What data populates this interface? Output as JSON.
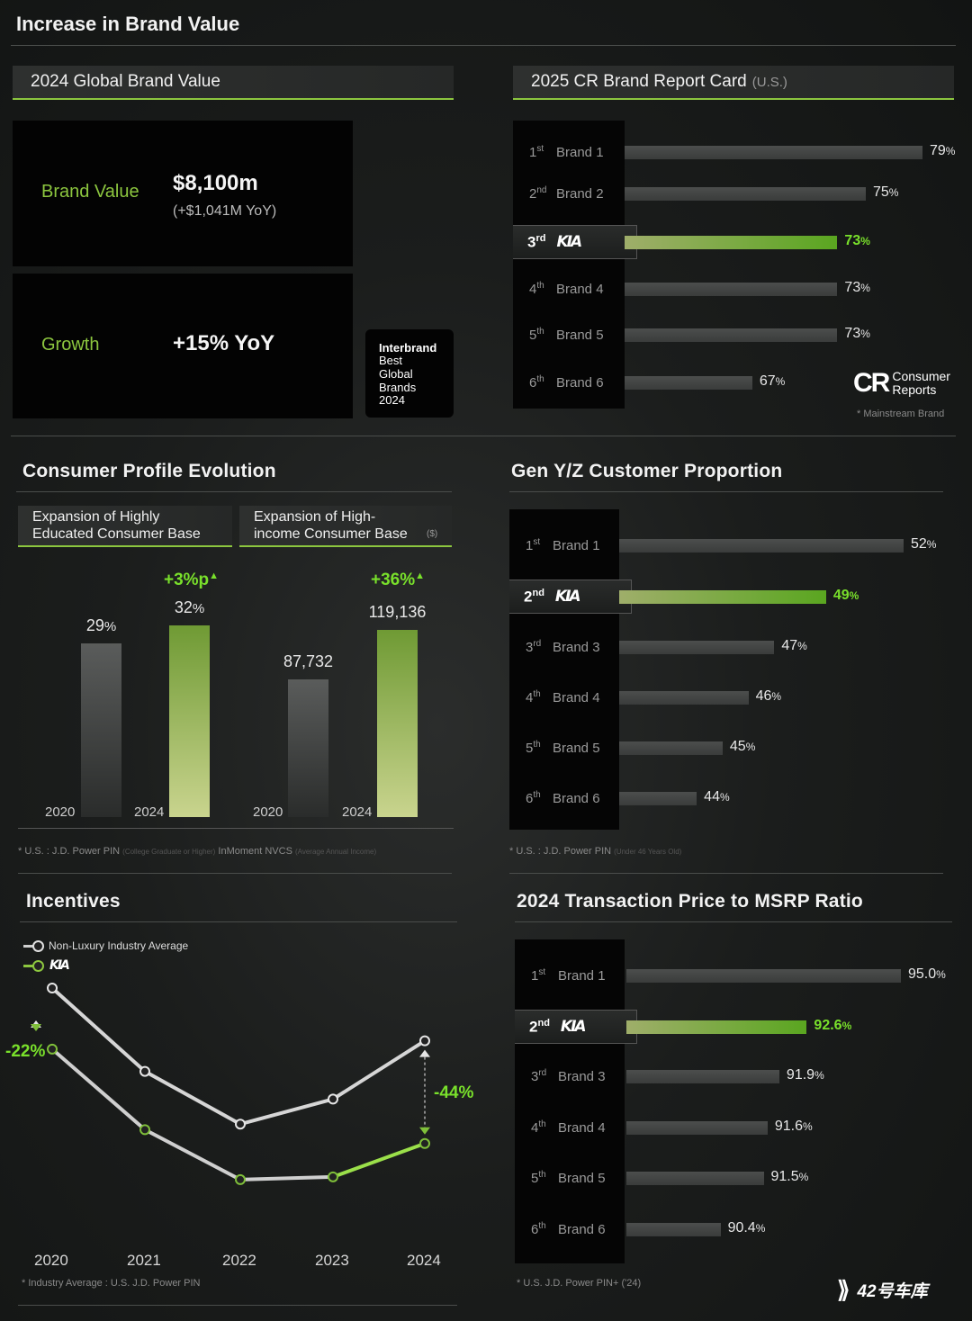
{
  "page_title": "Increase in Brand Value",
  "brand_value": {
    "tab_label": "2024 Global Brand Value",
    "value_label": "Brand Value",
    "value": "$8,100m",
    "value_change": "(+$1,041M YoY)",
    "growth_label": "Growth",
    "growth_value": "+15% YoY",
    "interbrand_badge": [
      "Interbrand",
      "Best",
      "Global",
      "Brands",
      "2024"
    ]
  },
  "cr_report": {
    "tab_label": "2025 CR Brand Report Card",
    "tab_sub": "(U.S.)",
    "footnote": "* Mainstream Brand",
    "logo_text": [
      "CR",
      "Consumer",
      "Reports"
    ]
  },
  "consumer_profile": {
    "title": "Consumer Profile Evolution",
    "tab1": "Expansion of Highly Educated Consumer Base",
    "tab2": "Expansion of High-income Consumer Base",
    "tab2_unit": "($)",
    "footnote_a": "* U.S. : J.D. Power PIN",
    "footnote_a_note": "(College Graduate or Higher)",
    "footnote_b": "InMoment NVCS",
    "footnote_b_note": "(Average Annual Income)"
  },
  "genyz": {
    "title": "Gen Y/Z Customer Proportion",
    "footnote": "* U.S. : J.D. Power PIN",
    "footnote_note": "(Under 46 Years Old)"
  },
  "incentives": {
    "title": "Incentives",
    "legend_industry": "Non-Luxury Industry Average",
    "legend_kia": "KIA",
    "left_change": "-22%",
    "right_change": "-44%",
    "footnote": "* Industry Average : U.S. J.D. Power PIN"
  },
  "transaction": {
    "title": "2024 Transaction Price to MSRP Ratio",
    "footnote": "* U.S. J.D. Power PIN+ ('24)"
  },
  "watermark": "42号车库",
  "colors": {
    "accent": "#8cc63f",
    "highlight": "#79e02b",
    "bar": "#464847"
  },
  "chart_data": [
    {
      "type": "bar",
      "title": "2025 CR Brand Report Card",
      "categories": [
        "Brand 1",
        "Brand 2",
        "KIA",
        "Brand 4",
        "Brand 5",
        "Brand 6"
      ],
      "ranks": [
        "1st",
        "2nd",
        "3rd",
        "4th",
        "5th",
        "6th"
      ],
      "values": [
        79,
        75,
        73,
        73,
        73,
        67
      ],
      "labels": [
        "79%",
        "75%",
        "73%",
        "73%",
        "73%",
        "67%"
      ],
      "highlight_index": 2,
      "orientation": "horizontal"
    },
    {
      "type": "bar",
      "title": "Expansion of Highly Educated Consumer Base",
      "categories": [
        "2020",
        "2024"
      ],
      "values": [
        29,
        32
      ],
      "labels": [
        "29%",
        "32%"
      ],
      "change": "+3%p"
    },
    {
      "type": "bar",
      "title": "Expansion of High-income Consumer Base",
      "categories": [
        "2020",
        "2024"
      ],
      "values": [
        87732,
        119136
      ],
      "labels": [
        "87,732",
        "119,136"
      ],
      "change": "+36%"
    },
    {
      "type": "bar",
      "title": "Gen Y/Z Customer Proportion",
      "categories": [
        "Brand 1",
        "KIA",
        "Brand 3",
        "Brand 4",
        "Brand 5",
        "Brand 6"
      ],
      "ranks": [
        "1st",
        "2nd",
        "3rd",
        "4th",
        "5th",
        "6th"
      ],
      "values": [
        52,
        49,
        47,
        46,
        45,
        44
      ],
      "labels": [
        "52%",
        "49%",
        "47%",
        "46%",
        "45%",
        "44%"
      ],
      "highlight_index": 1,
      "orientation": "horizontal"
    },
    {
      "type": "line",
      "title": "Incentives",
      "x": [
        "2020",
        "2021",
        "2022",
        "2023",
        "2024"
      ],
      "series": [
        {
          "name": "Non-Luxury Industry Average",
          "values": [
            100,
            70,
            51,
            60,
            81
          ]
        },
        {
          "name": "KIA",
          "values": [
            78,
            49,
            31,
            32,
            44
          ]
        }
      ],
      "annotations": [
        "-22%",
        "-44%"
      ]
    },
    {
      "type": "bar",
      "title": "2024 Transaction Price to MSRP Ratio",
      "categories": [
        "Brand 1",
        "KIA",
        "Brand 3",
        "Brand 4",
        "Brand 5",
        "Brand 6"
      ],
      "ranks": [
        "1st",
        "2nd",
        "3rd",
        "4th",
        "5th",
        "6th"
      ],
      "values": [
        95.0,
        92.6,
        91.9,
        91.6,
        91.5,
        90.4
      ],
      "labels": [
        "95.0%",
        "92.6%",
        "91.9%",
        "91.6%",
        "91.5%",
        "90.4%"
      ],
      "highlight_index": 1,
      "orientation": "horizontal"
    }
  ]
}
